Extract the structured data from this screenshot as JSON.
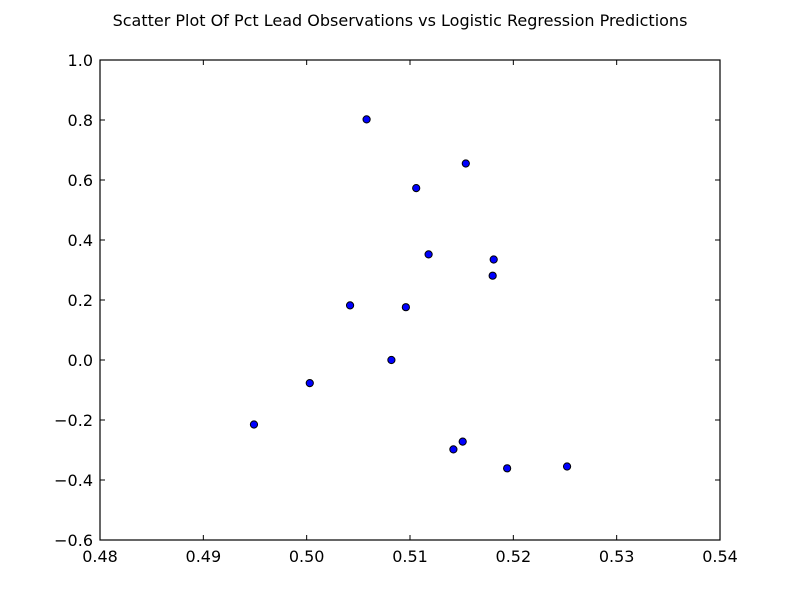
{
  "chart_data": {
    "type": "scatter",
    "title": "Scatter Plot Of Pct Lead Observations vs Logistic Regression Predictions",
    "xlabel": "",
    "ylabel": "",
    "xlim": [
      0.48,
      0.54
    ],
    "ylim": [
      -0.6,
      1.0
    ],
    "x_ticks": [
      0.48,
      0.49,
      0.5,
      0.51,
      0.52,
      0.53,
      0.54
    ],
    "x_tick_labels": [
      "0.48",
      "0.49",
      "0.50",
      "0.51",
      "0.52",
      "0.53",
      "0.54"
    ],
    "y_ticks": [
      -0.6,
      -0.4,
      -0.2,
      0.0,
      0.2,
      0.4,
      0.6,
      0.8,
      1.0
    ],
    "y_tick_labels": [
      "−0.6",
      "−0.4",
      "−0.2",
      "0.0",
      "0.2",
      "0.4",
      "0.6",
      "0.8",
      "1.0"
    ],
    "grid": false,
    "marker_color": "#0000ff",
    "points": [
      {
        "x": 0.4949,
        "y": -0.215
      },
      {
        "x": 0.5003,
        "y": -0.077
      },
      {
        "x": 0.5042,
        "y": 0.182
      },
      {
        "x": 0.5058,
        "y": 0.802
      },
      {
        "x": 0.5082,
        "y": 0.0
      },
      {
        "x": 0.5096,
        "y": 0.176
      },
      {
        "x": 0.5106,
        "y": 0.573
      },
      {
        "x": 0.5118,
        "y": 0.352
      },
      {
        "x": 0.5142,
        "y": -0.298
      },
      {
        "x": 0.5151,
        "y": -0.272
      },
      {
        "x": 0.5154,
        "y": 0.655
      },
      {
        "x": 0.518,
        "y": 0.281
      },
      {
        "x": 0.5181,
        "y": 0.335
      },
      {
        "x": 0.5194,
        "y": -0.361
      },
      {
        "x": 0.5252,
        "y": -0.355
      }
    ]
  }
}
